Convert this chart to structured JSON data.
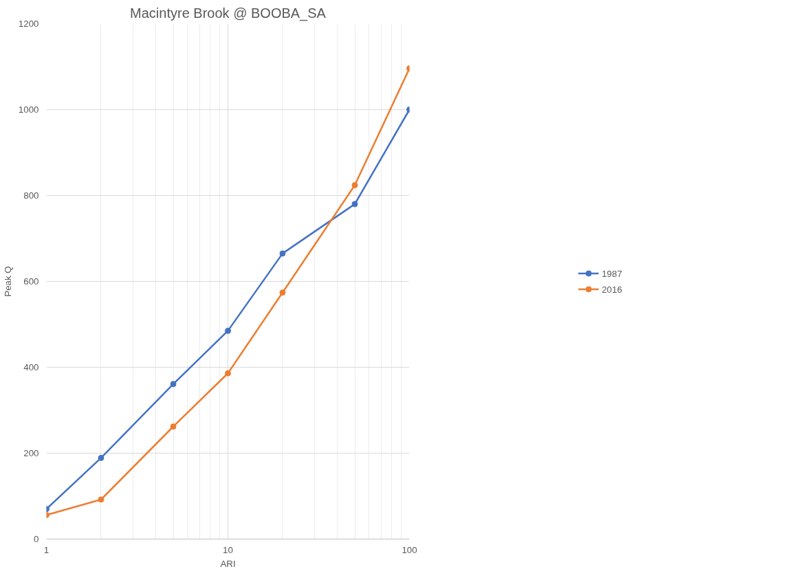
{
  "chart_data": {
    "type": "line",
    "title": "Macintyre Brook @ BOOBA_SA",
    "xlabel": "ARI",
    "ylabel": "Peak Q",
    "log": "x",
    "x": [
      1,
      2,
      5,
      10,
      20,
      50,
      100
    ],
    "xlim": [
      1,
      100
    ],
    "xticks": [
      1,
      10,
      100
    ],
    "ylim": [
      0,
      1200
    ],
    "yticks": [
      0,
      200,
      400,
      600,
      800,
      1000,
      1200
    ],
    "grid": true,
    "legend": "right",
    "marker": "circle",
    "line_style": "solid",
    "series": [
      {
        "name": "1987",
        "color": "#4472c4",
        "values": [
          70,
          189,
          361,
          485,
          665,
          780,
          1000
        ]
      },
      {
        "name": "2016",
        "color": "#ed7d31",
        "values": [
          56,
          92,
          262,
          386,
          574,
          824,
          1096
        ]
      }
    ]
  }
}
